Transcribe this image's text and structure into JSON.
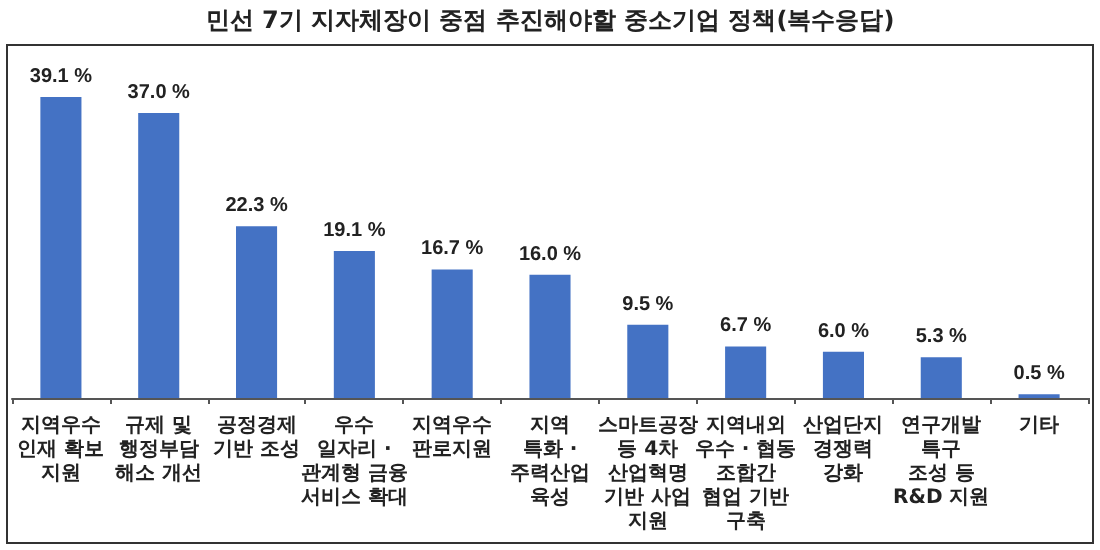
{
  "chart_data": {
    "type": "bar",
    "title": "민선 7기 지자체장이 중점 추진해야할 중소기업 정책(복수응답)",
    "categories": [
      "지역우수\n인재 확보\n지원",
      "규제 및\n행정부담\n해소 개선",
      "공정경제\n기반 조성",
      "우수\n일자리 ·\n관계형 금융\n서비스 확대",
      "지역우수\n판로지원",
      "지역\n특화 ·\n주력산업\n육성",
      "스마트공장\n등 4차\n산업혁명\n기반 사업\n지원",
      "지역내외\n우수 · 협동\n조합간\n협업 기반\n구축",
      "산업단지\n경쟁력\n강화",
      "연구개발\n특구\n조성 등\nR&D 지원",
      "기타"
    ],
    "values": [
      39.1,
      37.0,
      22.3,
      19.1,
      16.7,
      16.0,
      9.5,
      6.7,
      6.0,
      5.3,
      0.5
    ],
    "value_labels": [
      "39.1 %",
      "37.0 %",
      "22.3 %",
      "19.1 %",
      "16.7 %",
      "16.0 %",
      "9.5 %",
      "6.7 %",
      "6.0 %",
      "5.3 %",
      "0.5 %"
    ],
    "color": "#4472c4"
  }
}
